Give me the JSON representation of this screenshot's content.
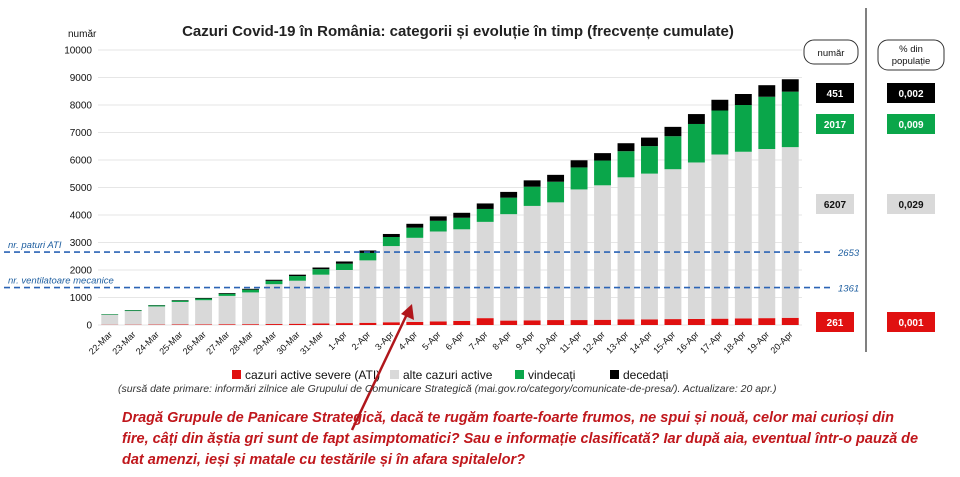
{
  "chart_data": {
    "type": "bar",
    "stacked": true,
    "title": "Cazuri Covid-19 în România: categorii și evoluție în timp (frecvențe cumulate)",
    "ylabel": "număr",
    "ylim": [
      0,
      10000
    ],
    "yticks": [
      "0",
      "1000",
      "2000",
      "3000",
      "4000",
      "5000",
      "6000",
      "7000",
      "8000",
      "9000",
      "10000"
    ],
    "grid": true,
    "legend_position": "bottom",
    "categories": [
      "22-Mar",
      "23-Mar",
      "24-Mar",
      "25-Mar",
      "26-Mar",
      "27-Mar",
      "28-Mar",
      "29-Mar",
      "30-Mar",
      "31-Mar",
      "1-Apr",
      "2-Apr",
      "3-Apr",
      "4-Apr",
      "5-Apr",
      "6-Apr",
      "7-Apr",
      "8-Apr",
      "9-Apr",
      "10-Apr",
      "11-Apr",
      "12-Apr",
      "13-Apr",
      "14-Apr",
      "15-Apr",
      "16-Apr",
      "17-Apr",
      "18-Apr",
      "19-Apr",
      "20-Apr"
    ],
    "series": [
      {
        "name": "cazuri active severe (ATI)",
        "color": "#e01010",
        "values": [
          10,
          12,
          15,
          18,
          22,
          28,
          30,
          35,
          45,
          55,
          70,
          80,
          100,
          110,
          130,
          150,
          250,
          160,
          170,
          180,
          180,
          190,
          200,
          205,
          215,
          220,
          230,
          240,
          250,
          261
        ]
      },
      {
        "name": "alte cazuri active",
        "color": "#d9d9d9",
        "values": [
          355,
          495,
          660,
          820,
          880,
          1030,
          1155,
          1450,
          1565,
          1775,
          1930,
          2270,
          2770,
          3060,
          3270,
          3330,
          3500,
          3870,
          4160,
          4280,
          4750,
          4890,
          5170,
          5300,
          5450,
          5690,
          5970,
          6060,
          6150,
          6207
        ]
      },
      {
        "name": "vindecați",
        "color": "#0aa64a",
        "values": [
          20,
          30,
          40,
          50,
          60,
          80,
          100,
          120,
          170,
          200,
          230,
          270,
          330,
          370,
          390,
          420,
          470,
          600,
          700,
          750,
          800,
          900,
          950,
          1000,
          1200,
          1400,
          1600,
          1700,
          1900,
          2017
        ]
      },
      {
        "name": "decedați",
        "color": "#000000",
        "values": [
          5,
          7,
          10,
          15,
          20,
          25,
          30,
          40,
          50,
          60,
          80,
          90,
          110,
          140,
          160,
          180,
          200,
          210,
          230,
          250,
          260,
          270,
          290,
          310,
          340,
          360,
          390,
          400,
          420,
          451
        ]
      }
    ],
    "reference_lines": [
      {
        "label": "nr. paturi ATI",
        "value": 2653,
        "value_label": "2653"
      },
      {
        "label": "nr. ventilatoare mecanice",
        "value": 1361,
        "value_label": "1361"
      }
    ],
    "summary": {
      "header_number": "număr",
      "header_percent": "% din populație",
      "rows": [
        {
          "series": "decedați",
          "number": "451",
          "percent": "0,002",
          "y": 451
        },
        {
          "series": "vindecați",
          "number": "2017",
          "percent": "0,009",
          "y": 2017
        },
        {
          "series": "alte cazuri active",
          "number": "6207",
          "percent": "0,029",
          "y": 6207
        },
        {
          "series": "cazuri active severe (ATI)",
          "number": "261",
          "percent": "0,001",
          "y": 261
        }
      ]
    }
  },
  "source_note": "(sursă date primare: informări zilnice ale Grupului de Comunicare Strategică (mai.gov.ro/category/comunicate-de-presa/). Actualizare: 20 apr.)",
  "comment": "Dragă Grupule de Panicare Strategică, dacă te rugăm foarte-foarte frumos, ne spui și nouă, celor mai curioși din fire, câți din ăștia gri sunt de fapt asimptomatici? Sau e informație clasificată? Iar după aia, eventual într-o pauză de dat amenzi, ieși și matale cu testările și în afara spitalelor?",
  "colors": {
    "arrow": "#b0161b",
    "reference_line": "#2a63b5",
    "comment": "#c0171c"
  }
}
